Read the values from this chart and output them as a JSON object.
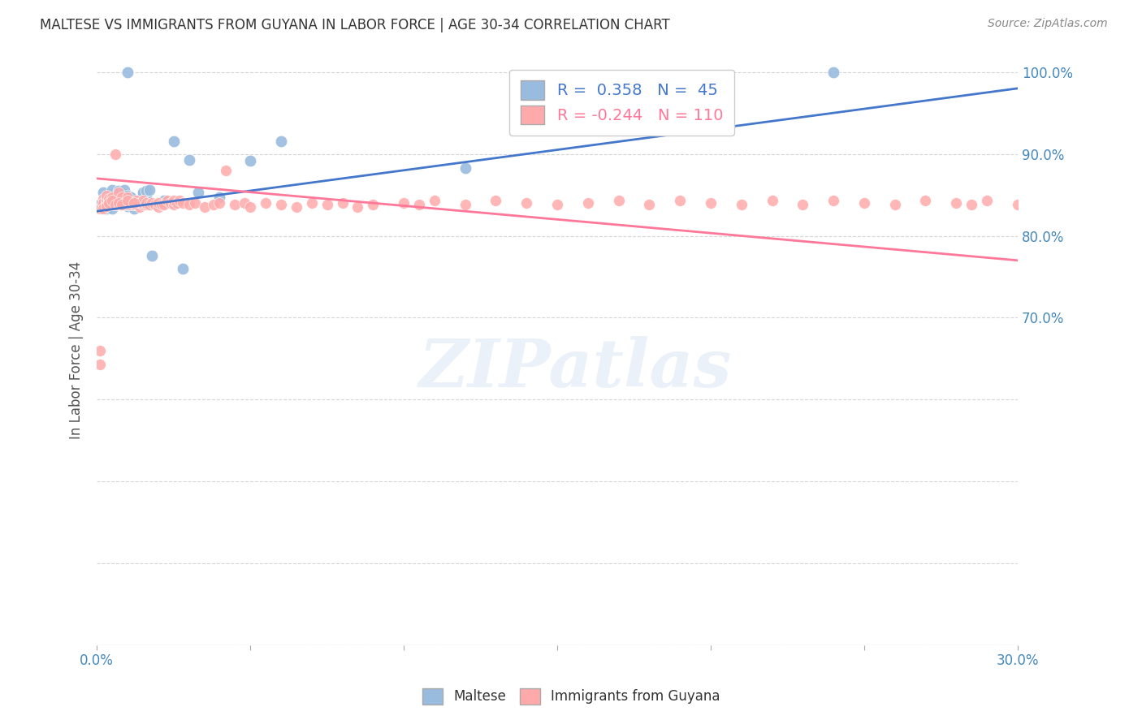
{
  "title": "MALTESE VS IMMIGRANTS FROM GUYANA IN LABOR FORCE | AGE 30-34 CORRELATION CHART",
  "source": "Source: ZipAtlas.com",
  "ylabel": "In Labor Force | Age 30-34",
  "xlim": [
    0.0,
    0.3
  ],
  "ylim": [
    0.3,
    1.02
  ],
  "xtick_positions": [
    0.0,
    0.05,
    0.1,
    0.15,
    0.2,
    0.25,
    0.3
  ],
  "xtick_labels": [
    "0.0%",
    "",
    "",
    "",
    "",
    "",
    "30.0%"
  ],
  "ytick_positions": [
    0.3,
    0.4,
    0.5,
    0.6,
    0.7,
    0.8,
    0.9,
    1.0
  ],
  "ytick_labels_right": [
    "",
    "",
    "",
    "",
    "70.0%",
    "80.0%",
    "90.0%",
    "100.0%"
  ],
  "blue_R": 0.358,
  "blue_N": 45,
  "pink_R": -0.244,
  "pink_N": 110,
  "blue_color": "#99BBDD",
  "pink_color": "#FFAAAA",
  "blue_line_color": "#4477CC",
  "pink_line_color": "#FF7799",
  "watermark": "ZIPatlas",
  "legend_label_blue": "Maltese",
  "legend_label_pink": "Immigrants from Guyana",
  "blue_x": [
    0.001,
    0.002,
    0.003,
    0.003,
    0.004,
    0.004,
    0.005,
    0.005,
    0.006,
    0.006,
    0.007,
    0.007,
    0.008,
    0.008,
    0.009,
    0.009,
    0.01,
    0.01,
    0.01,
    0.011,
    0.011,
    0.012,
    0.012,
    0.013,
    0.013,
    0.014,
    0.014,
    0.015,
    0.015,
    0.015,
    0.016,
    0.016,
    0.017,
    0.018,
    0.02,
    0.022,
    0.025,
    0.028,
    0.03,
    0.033,
    0.04,
    0.05,
    0.06,
    0.12,
    0.24
  ],
  "blue_y": [
    0.838,
    0.853,
    0.833,
    0.84,
    0.838,
    0.847,
    0.833,
    0.856,
    0.838,
    0.847,
    0.849,
    0.855,
    0.838,
    0.84,
    0.856,
    0.84,
    0.836,
    0.849,
    1.0,
    0.84,
    0.847,
    0.833,
    0.839,
    0.838,
    0.842,
    0.838,
    0.84,
    0.838,
    0.85,
    0.853,
    0.847,
    0.855,
    0.856,
    0.776,
    0.839,
    0.843,
    0.915,
    0.76,
    0.893,
    0.853,
    0.847,
    0.892,
    0.915,
    0.883,
    1.0
  ],
  "pink_x": [
    0.001,
    0.001,
    0.002,
    0.002,
    0.002,
    0.003,
    0.003,
    0.003,
    0.003,
    0.004,
    0.004,
    0.004,
    0.004,
    0.005,
    0.005,
    0.005,
    0.005,
    0.006,
    0.006,
    0.006,
    0.007,
    0.007,
    0.007,
    0.007,
    0.008,
    0.008,
    0.008,
    0.009,
    0.009,
    0.01,
    0.01,
    0.01,
    0.01,
    0.011,
    0.011,
    0.012,
    0.012,
    0.013,
    0.013,
    0.014,
    0.014,
    0.015,
    0.015,
    0.015,
    0.016,
    0.016,
    0.017,
    0.018,
    0.019,
    0.02,
    0.02,
    0.021,
    0.022,
    0.023,
    0.024,
    0.025,
    0.025,
    0.026,
    0.027,
    0.028,
    0.03,
    0.032,
    0.035,
    0.038,
    0.04,
    0.042,
    0.045,
    0.048,
    0.05,
    0.055,
    0.06,
    0.065,
    0.07,
    0.075,
    0.08,
    0.085,
    0.09,
    0.1,
    0.105,
    0.11,
    0.12,
    0.13,
    0.14,
    0.15,
    0.16,
    0.17,
    0.18,
    0.19,
    0.2,
    0.21,
    0.22,
    0.23,
    0.24,
    0.25,
    0.26,
    0.27,
    0.28,
    0.285,
    0.29,
    0.3,
    0.001,
    0.002,
    0.003,
    0.004,
    0.005,
    0.006,
    0.007,
    0.008,
    0.01,
    0.012
  ],
  "pink_y": [
    0.643,
    0.833,
    0.838,
    0.845,
    0.84,
    0.838,
    0.84,
    0.845,
    0.849,
    0.838,
    0.84,
    0.843,
    0.845,
    0.838,
    0.84,
    0.843,
    0.847,
    0.838,
    0.84,
    0.9,
    0.838,
    0.84,
    0.845,
    0.853,
    0.838,
    0.843,
    0.847,
    0.838,
    0.84,
    0.838,
    0.84,
    0.843,
    0.847,
    0.838,
    0.84,
    0.838,
    0.84,
    0.838,
    0.843,
    0.835,
    0.84,
    0.838,
    0.84,
    0.843,
    0.838,
    0.84,
    0.838,
    0.84,
    0.838,
    0.835,
    0.84,
    0.838,
    0.838,
    0.843,
    0.84,
    0.838,
    0.843,
    0.84,
    0.843,
    0.84,
    0.838,
    0.84,
    0.835,
    0.838,
    0.84,
    0.88,
    0.838,
    0.84,
    0.835,
    0.84,
    0.838,
    0.835,
    0.84,
    0.838,
    0.84,
    0.835,
    0.838,
    0.84,
    0.838,
    0.843,
    0.838,
    0.843,
    0.84,
    0.838,
    0.84,
    0.843,
    0.838,
    0.843,
    0.84,
    0.838,
    0.843,
    0.838,
    0.843,
    0.84,
    0.838,
    0.843,
    0.84,
    0.838,
    0.843,
    0.838,
    0.66,
    0.833,
    0.836,
    0.84,
    0.843,
    0.838,
    0.84,
    0.838,
    0.843,
    0.84
  ],
  "blue_trend_x": [
    0.0,
    0.3
  ],
  "blue_trend_y": [
    0.83,
    0.98
  ],
  "pink_trend_x": [
    0.0,
    0.3
  ],
  "pink_trend_y": [
    0.87,
    0.77
  ]
}
